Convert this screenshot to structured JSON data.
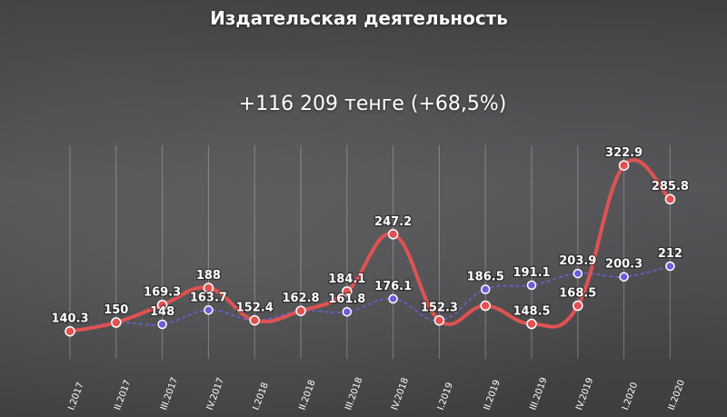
{
  "title": "Издательская деятельность",
  "subtitle": "+116 209 тенге (+68,5%)",
  "colors": {
    "series_red": "#e05252",
    "series_blue": "#6a5fd8"
  },
  "chart_data": {
    "type": "line",
    "categories": [
      "I.2017",
      "II.2017",
      "III.2017",
      "IV.2017",
      "I.2018",
      "II.2018",
      "III.2018",
      "IV.2018",
      "I.2019",
      "II.2019",
      "III.2019",
      "IV.2019",
      "I.2020",
      "II.2020"
    ],
    "series": [
      {
        "color": "#e05252",
        "style": "solid",
        "values": [
          140.3,
          150,
          169.3,
          188,
          152.4,
          162.8,
          184.1,
          247.2,
          152.3,
          168.5,
          148.5,
          168.5,
          322.9,
          285.8
        ],
        "labels": [
          "140.3",
          "",
          "169.3",
          "188",
          "152.4",
          "162.8",
          "184.1",
          "247.2",
          "152.3",
          "",
          "148.5",
          "168.5",
          "322.9",
          "285.8"
        ]
      },
      {
        "color": "#6a5fd8",
        "style": "dashed",
        "values": [
          140.3,
          150,
          148,
          163.7,
          152.4,
          162.8,
          161.8,
          176.1,
          152.3,
          186.5,
          191.1,
          203.9,
          200.3,
          212
        ],
        "labels": [
          "",
          "150",
          "148",
          "163.7",
          "",
          "",
          "161.8",
          "176.1",
          "",
          "186.5",
          "191.1",
          "203.9",
          "200.3",
          "212"
        ]
      }
    ],
    "ylim": [
      120,
      340
    ],
    "grid": "vertical"
  }
}
